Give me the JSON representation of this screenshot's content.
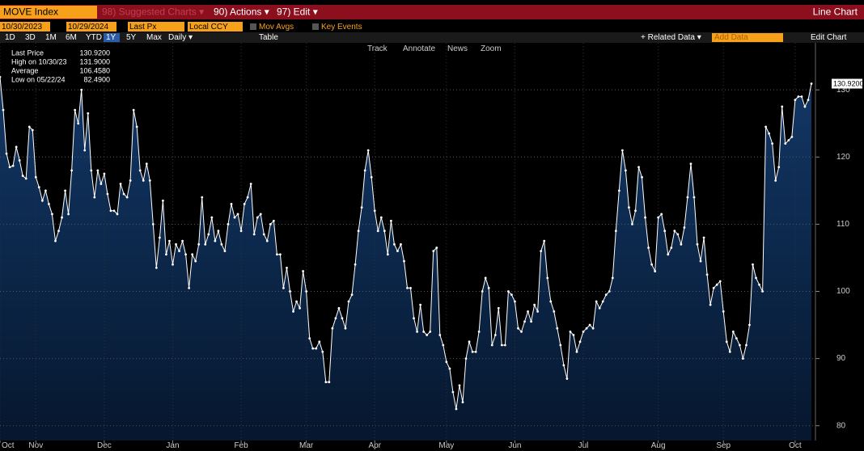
{
  "toolbar": {
    "ticker": "MOVE Index",
    "suggested": "98) Suggested Charts ▾",
    "actions": "90) Actions ▾",
    "edit": "97) Edit ▾",
    "view": "Line Chart",
    "start_date": "10/30/2023",
    "end_date": "10/29/2024",
    "field": "Last Px",
    "currency": "Local CCY",
    "mov_avgs": "Mov Avgs",
    "key_events": "Key Events",
    "periods": [
      "1D",
      "3D",
      "1M",
      "6M",
      "YTD",
      "1Y",
      "5Y",
      "Max"
    ],
    "frequency": "Daily ▾",
    "table": "Table",
    "related": "+ Related Data ▾",
    "add_data": "Add Data",
    "edit_chart": "Edit Chart",
    "tools": [
      "Track",
      "Annotate",
      "News",
      "Zoom"
    ]
  },
  "stats": [
    {
      "label": "Last Price",
      "value": "130.9200"
    },
    {
      "label": "High on 10/30/23",
      "value": "131.9000"
    },
    {
      "label": "Average",
      "value": "106.4580"
    },
    {
      "label": "Low on 05/22/24",
      "value": "82.4900"
    }
  ],
  "chart_data": {
    "type": "line",
    "color": "#ffffff",
    "fill": "#0c2447",
    "grid": true,
    "ylim": [
      77.8,
      137
    ],
    "yticks": [
      80,
      90,
      100,
      110,
      120,
      130
    ],
    "xticks": [
      {
        "value": 0,
        "label": "Oct"
      },
      {
        "value": 11,
        "label": "Nov"
      },
      {
        "value": 32,
        "label": "Dec"
      },
      {
        "value": 53,
        "label": "Jan"
      },
      {
        "value": 74,
        "label": "Feb"
      },
      {
        "value": 94,
        "label": "Mar"
      },
      {
        "value": 115,
        "label": "Apr"
      },
      {
        "value": 137,
        "label": "May"
      },
      {
        "value": 158,
        "label": "Jun"
      },
      {
        "value": 179,
        "label": "Jul"
      },
      {
        "value": 202,
        "label": "Aug"
      },
      {
        "value": 222,
        "label": "Sep"
      },
      {
        "value": 244,
        "label": "Oct"
      }
    ],
    "series": [
      {
        "name": "MOVE Index",
        "values": [
          131.9,
          127,
          120.5,
          118.5,
          118.7,
          121.5,
          119.5,
          117.2,
          116.8,
          124.5,
          124,
          117,
          115.5,
          113.5,
          115,
          113,
          111.5,
          107.5,
          109,
          111,
          115,
          111.5,
          118,
          127,
          125,
          130,
          121,
          126.5,
          118,
          114,
          118,
          116,
          117.5,
          114.5,
          112,
          112,
          111.5,
          116,
          114.5,
          114,
          116.5,
          127,
          124.5,
          118,
          116.5,
          119,
          116.5,
          110,
          103.5,
          108,
          113.5,
          105.5,
          107.5,
          104,
          107,
          106,
          107.5,
          105.5,
          100.5,
          105.5,
          104.5,
          107,
          114,
          107,
          108.5,
          111,
          107.5,
          109,
          107,
          106,
          110,
          113,
          111,
          111.5,
          109,
          113,
          114,
          116,
          108.5,
          111,
          111.5,
          108.5,
          107.5,
          110,
          110.5,
          105.5,
          105.5,
          100.5,
          103.5,
          100,
          97,
          98.5,
          97.5,
          103,
          100,
          93,
          91.5,
          91.5,
          92.5,
          91,
          86.5,
          86.5,
          94.5,
          96,
          97.5,
          96,
          94.5,
          98.5,
          99.5,
          104,
          109,
          112.5,
          118,
          121,
          117,
          112,
          109,
          111,
          109,
          105.5,
          110.5,
          107,
          106,
          107,
          104.5,
          100.5,
          100.5,
          96,
          94,
          98,
          94,
          93.5,
          94,
          106,
          106.5,
          93.5,
          92,
          89.5,
          88.5,
          85,
          82.49,
          86,
          83.5,
          90,
          92.5,
          91,
          91,
          94,
          100,
          102,
          100.5,
          92,
          93.5,
          97.5,
          92,
          92,
          100,
          99.5,
          98.5,
          94.5,
          94,
          95.5,
          97,
          95.5,
          98,
          97,
          106,
          107.5,
          102,
          98.5,
          97,
          94.5,
          92,
          89,
          87,
          94,
          93.5,
          91,
          92.5,
          94,
          94.5,
          95,
          94.5,
          98.5,
          97.5,
          98.5,
          99.5,
          100,
          102,
          109,
          115,
          121,
          118,
          112.5,
          110,
          112,
          118.5,
          117,
          111,
          106.5,
          104,
          103,
          111,
          111.5,
          109,
          105.5,
          106.5,
          109,
          108.5,
          107,
          109.5,
          114,
          119,
          114,
          107,
          104.5,
          108,
          102.5,
          98,
          100.5,
          101,
          101.5,
          97,
          92.5,
          91,
          94,
          93,
          92,
          90,
          92,
          95,
          104,
          102,
          101,
          100,
          124.5,
          123.5,
          122,
          116.5,
          118.5,
          127.5,
          122,
          122.5,
          123,
          128.5,
          129,
          129,
          127.5,
          128.5,
          130.92
        ]
      }
    ]
  }
}
